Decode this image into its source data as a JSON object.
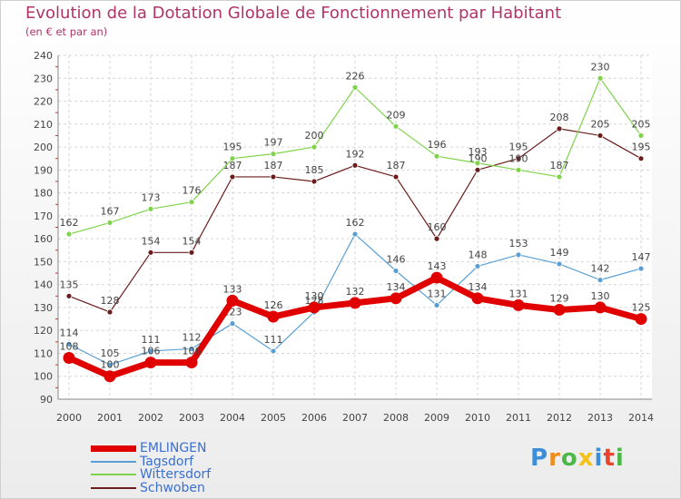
{
  "chart_data": {
    "type": "line",
    "title": "Evolution de la Dotation Globale de Fonctionnement par Habitant",
    "subtitle": "(en € et par an)",
    "x": [
      "2000",
      "2001",
      "2002",
      "2003",
      "2004",
      "2005",
      "2006",
      "2007",
      "2008",
      "2009",
      "2010",
      "2011",
      "2012",
      "2013",
      "2014"
    ],
    "ylim": [
      90,
      240
    ],
    "yticks": [
      90,
      100,
      110,
      120,
      130,
      140,
      150,
      160,
      170,
      180,
      190,
      200,
      210,
      220,
      230,
      240
    ],
    "grid": true,
    "series": [
      {
        "name": "Schwoben",
        "color": "#6b1c1c",
        "width": 1.2,
        "values": [
          135,
          128,
          154,
          154,
          187,
          187,
          185,
          192,
          187,
          160,
          190,
          195,
          208,
          205,
          195
        ],
        "labels": [
          "135",
          "128",
          "154",
          "154",
          "187",
          "187",
          "185",
          "192",
          "187",
          "160",
          "190",
          "195",
          "208",
          "205",
          "195"
        ]
      },
      {
        "name": "Wittersdorf",
        "color": "#7fd34a",
        "width": 1.2,
        "values": [
          162,
          167,
          173,
          176,
          195,
          197,
          200,
          226,
          209,
          196,
          193,
          190,
          187,
          230,
          205
        ],
        "labels": [
          "162",
          "167",
          "173",
          "176",
          "195",
          "197",
          "200",
          "226",
          "209",
          "196",
          "193",
          "190",
          "187",
          "230",
          "205"
        ]
      },
      {
        "name": "Tagsdorf",
        "color": "#5a9fd4",
        "width": 1.2,
        "values": [
          114,
          105,
          111,
          112,
          123,
          111,
          128,
          162,
          146,
          131,
          148,
          153,
          149,
          142,
          147
        ],
        "labels": [
          "114",
          "105",
          "111",
          "112",
          "123",
          "111",
          "128",
          "162",
          "146",
          "131",
          "148",
          "153",
          "149",
          "142",
          "147"
        ]
      },
      {
        "name": "EMLINGEN",
        "color": "#e00000",
        "width": 7,
        "values": [
          108,
          100,
          106,
          106,
          133,
          126,
          130,
          132,
          134,
          143,
          134,
          131,
          129,
          130,
          125
        ],
        "labels": [
          "108",
          "100",
          "106",
          "106",
          "133",
          "126",
          "130",
          "132",
          "134",
          "143",
          "134",
          "131",
          "129",
          "130",
          "125"
        ]
      }
    ]
  },
  "legend": [
    {
      "name": "EMLINGEN",
      "color": "#e00000",
      "thickness": 7
    },
    {
      "name": "Tagsdorf",
      "color": "#5a9fd4",
      "thickness": 2
    },
    {
      "name": "Wittersdorf",
      "color": "#7fd34a",
      "thickness": 2
    },
    {
      "name": "Schwoben",
      "color": "#6b1c1c",
      "thickness": 2
    }
  ],
  "logo": {
    "letters": [
      "P",
      "r",
      "o",
      "x",
      "i",
      "t",
      "i"
    ],
    "colors": [
      "#3a8fd8",
      "#f08c1c",
      "#4cb848",
      "#f5c21a",
      "#3a8fd8",
      "#e8452c",
      "#4cb848"
    ]
  }
}
